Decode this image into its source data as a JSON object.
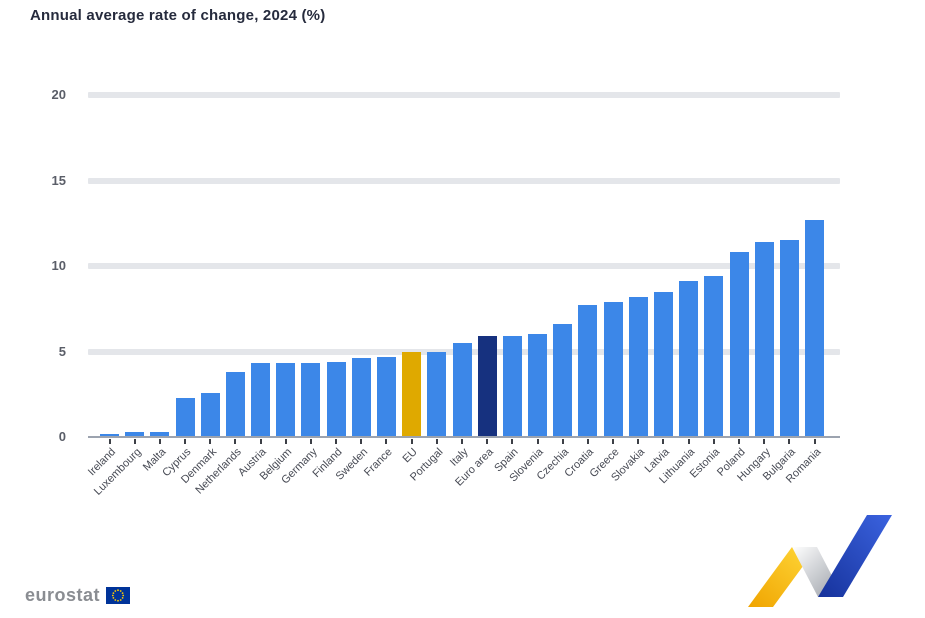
{
  "chart_data": {
    "type": "bar",
    "title": "Annual average rate of change, 2024 (%)",
    "xlabel": "",
    "ylabel": "",
    "ylim": [
      0,
      20
    ],
    "yticks": [
      0,
      5,
      10,
      15,
      20
    ],
    "grid": "horizontal",
    "legend": "none",
    "categories": [
      "Ireland",
      "Luxembourg",
      "Malta",
      "Cyprus",
      "Denmark",
      "Netherlands",
      "Austria",
      "Belgium",
      "Germany",
      "Finland",
      "Sweden",
      "France",
      "EU",
      "Portugal",
      "Italy",
      "Euro area",
      "Spain",
      "Slovenia",
      "Czechia",
      "Croatia",
      "Greece",
      "Slovakia",
      "Latvia",
      "Lithuania",
      "Estonia",
      "Poland",
      "Hungary",
      "Bulgaria",
      "Romania"
    ],
    "values": [
      0.2,
      0.3,
      0.3,
      2.3,
      2.6,
      3.8,
      4.3,
      4.3,
      4.3,
      4.4,
      4.6,
      4.7,
      5.0,
      5.0,
      5.5,
      5.9,
      5.9,
      6.0,
      6.6,
      7.7,
      7.9,
      8.2,
      8.5,
      9.1,
      9.4,
      10.8,
      11.4,
      11.5,
      12.7
    ],
    "bar_roles": [
      "blue",
      "blue",
      "blue",
      "blue",
      "blue",
      "blue",
      "blue",
      "blue",
      "blue",
      "blue",
      "blue",
      "blue",
      "gold",
      "blue",
      "blue",
      "navy",
      "blue",
      "blue",
      "blue",
      "blue",
      "blue",
      "blue",
      "blue",
      "blue",
      "blue",
      "blue",
      "blue",
      "blue",
      "blue"
    ],
    "color_key": {
      "blue": "country",
      "gold": "EU",
      "navy": "Euro area"
    }
  },
  "colors": {
    "bar_blue": "#3c87e8",
    "bar_gold": "#dfa900",
    "bar_navy": "#16317f",
    "gridline": "#e4e6ea",
    "axis_line": "#9ca3af",
    "title_text": "#262b3d",
    "ytick_text": "#5a5e68",
    "xlabel_text": "#474a54",
    "brand_text": "#8a8d92",
    "flag_blue": "#003399",
    "flag_stars": "#ffcc00",
    "logo_yellow": "#f3b800",
    "logo_blue": "#2148be",
    "logo_silver": "#c9ccd2"
  },
  "footer": {
    "brand": "eurostat"
  },
  "icons": {
    "eu_flag": "eu-flag-icon",
    "ribbon": "statistics-ribbon-logo-icon"
  }
}
